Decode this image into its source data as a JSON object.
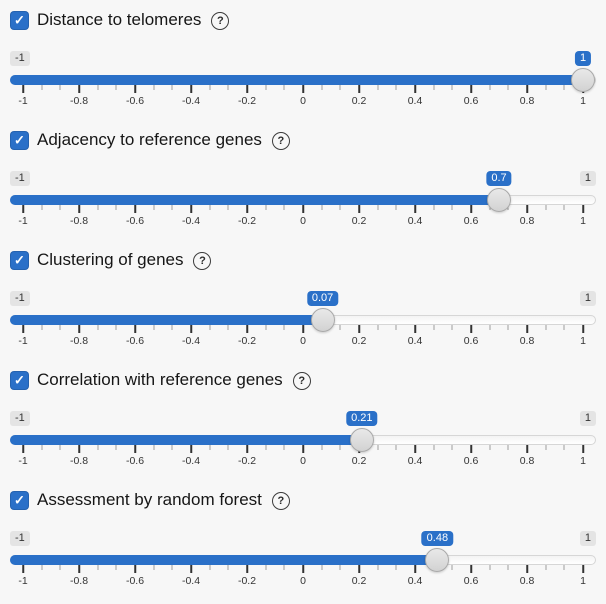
{
  "page": {
    "background_color": "#f7f7f7",
    "accent_color": "#2a70c8",
    "check_glyph": "✓",
    "help_glyph": "?"
  },
  "scale": {
    "min": -1,
    "max": 1,
    "tick_labels": [
      "-1",
      "-0.8",
      "-0.6",
      "-0.4",
      "-0.2",
      "0",
      "0.2",
      "0.4",
      "0.6",
      "0.8",
      "1"
    ],
    "minor_ticks_per_interval": 2
  },
  "sliders": [
    {
      "label": "Distance to telomeres",
      "checked": true,
      "value": 1,
      "value_label": "1",
      "min_label": "-1",
      "max_label": "1",
      "max_label_visible": false
    },
    {
      "label": "Adjacency to reference genes",
      "checked": true,
      "value": 0.7,
      "value_label": "0.7",
      "min_label": "-1",
      "max_label": "1",
      "max_label_visible": true
    },
    {
      "label": "Clustering of genes",
      "checked": true,
      "value": 0.07,
      "value_label": "0.07",
      "min_label": "-1",
      "max_label": "1",
      "max_label_visible": true
    },
    {
      "label": "Correlation with reference genes",
      "checked": true,
      "value": 0.21,
      "value_label": "0.21",
      "min_label": "-1",
      "max_label": "1",
      "max_label_visible": true
    },
    {
      "label": "Assessment by random forest",
      "checked": true,
      "value": 0.48,
      "value_label": "0.48",
      "min_label": "-1",
      "max_label": "1",
      "max_label_visible": true
    }
  ]
}
